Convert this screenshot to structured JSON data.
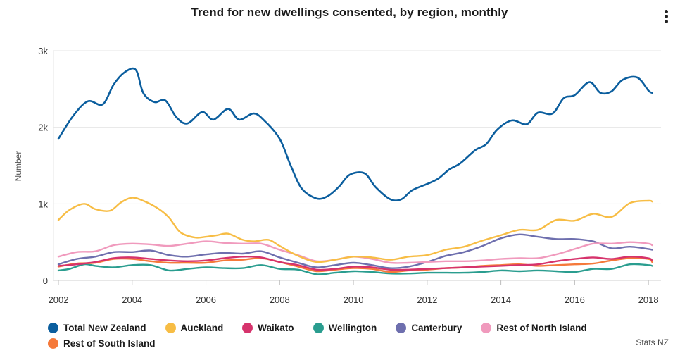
{
  "chart_data": {
    "type": "line",
    "title": "Trend for new dwellings consented, by region, monthly",
    "xlabel": "",
    "ylabel": "Number",
    "xlim": [
      2002,
      2018.15
    ],
    "ylim": [
      0,
      3000
    ],
    "x_ticks": [
      "2002",
      "2004",
      "2006",
      "2008",
      "2010",
      "2012",
      "2014",
      "2016",
      "2018"
    ],
    "y_ticks": [
      {
        "value": 0,
        "label": "0"
      },
      {
        "value": 1000,
        "label": "1k"
      },
      {
        "value": 2000,
        "label": "2k"
      },
      {
        "value": 3000,
        "label": "3k"
      }
    ],
    "grid": true,
    "legend_position": "bottom",
    "series": [
      {
        "name": "Total New Zealand",
        "color": "#0b5e9e",
        "points": [
          [
            2002.0,
            1850
          ],
          [
            2002.4,
            2150
          ],
          [
            2002.8,
            2340
          ],
          [
            2003.2,
            2300
          ],
          [
            2003.5,
            2560
          ],
          [
            2003.8,
            2720
          ],
          [
            2004.1,
            2750
          ],
          [
            2004.3,
            2450
          ],
          [
            2004.6,
            2330
          ],
          [
            2004.9,
            2350
          ],
          [
            2005.2,
            2130
          ],
          [
            2005.5,
            2050
          ],
          [
            2005.9,
            2200
          ],
          [
            2006.2,
            2100
          ],
          [
            2006.6,
            2240
          ],
          [
            2006.9,
            2100
          ],
          [
            2007.3,
            2180
          ],
          [
            2007.6,
            2080
          ],
          [
            2008.0,
            1850
          ],
          [
            2008.3,
            1500
          ],
          [
            2008.6,
            1200
          ],
          [
            2009.0,
            1070
          ],
          [
            2009.3,
            1100
          ],
          [
            2009.6,
            1220
          ],
          [
            2009.9,
            1380
          ],
          [
            2010.3,
            1400
          ],
          [
            2010.6,
            1220
          ],
          [
            2011.0,
            1060
          ],
          [
            2011.3,
            1060
          ],
          [
            2011.6,
            1180
          ],
          [
            2012.0,
            1260
          ],
          [
            2012.3,
            1330
          ],
          [
            2012.6,
            1450
          ],
          [
            2012.9,
            1530
          ],
          [
            2013.3,
            1700
          ],
          [
            2013.6,
            1780
          ],
          [
            2013.9,
            1970
          ],
          [
            2014.3,
            2090
          ],
          [
            2014.7,
            2040
          ],
          [
            2015.0,
            2190
          ],
          [
            2015.4,
            2180
          ],
          [
            2015.7,
            2380
          ],
          [
            2016.0,
            2420
          ],
          [
            2016.4,
            2590
          ],
          [
            2016.7,
            2450
          ],
          [
            2017.0,
            2470
          ],
          [
            2017.3,
            2620
          ],
          [
            2017.7,
            2650
          ],
          [
            2018.0,
            2480
          ],
          [
            2018.1,
            2450
          ]
        ]
      },
      {
        "name": "Auckland",
        "color": "#f7bd45",
        "points": [
          [
            2002.0,
            790
          ],
          [
            2002.3,
            920
          ],
          [
            2002.7,
            1000
          ],
          [
            2003.0,
            930
          ],
          [
            2003.4,
            910
          ],
          [
            2003.7,
            1020
          ],
          [
            2004.0,
            1080
          ],
          [
            2004.3,
            1040
          ],
          [
            2004.7,
            940
          ],
          [
            2005.0,
            820
          ],
          [
            2005.3,
            630
          ],
          [
            2005.7,
            560
          ],
          [
            2006.0,
            570
          ],
          [
            2006.3,
            590
          ],
          [
            2006.6,
            610
          ],
          [
            2007.0,
            530
          ],
          [
            2007.3,
            510
          ],
          [
            2007.7,
            530
          ],
          [
            2008.0,
            450
          ],
          [
            2008.5,
            320
          ],
          [
            2009.0,
            240
          ],
          [
            2009.5,
            270
          ],
          [
            2010.0,
            310
          ],
          [
            2010.5,
            300
          ],
          [
            2011.0,
            270
          ],
          [
            2011.5,
            310
          ],
          [
            2012.0,
            330
          ],
          [
            2012.5,
            400
          ],
          [
            2013.0,
            440
          ],
          [
            2013.5,
            520
          ],
          [
            2014.0,
            590
          ],
          [
            2014.5,
            660
          ],
          [
            2015.0,
            660
          ],
          [
            2015.5,
            790
          ],
          [
            2016.0,
            780
          ],
          [
            2016.5,
            870
          ],
          [
            2017.0,
            830
          ],
          [
            2017.5,
            1010
          ],
          [
            2018.0,
            1040
          ],
          [
            2018.1,
            1030
          ]
        ]
      },
      {
        "name": "Waikato",
        "color": "#d6336c",
        "points": [
          [
            2002.0,
            190
          ],
          [
            2002.5,
            210
          ],
          [
            2003.0,
            240
          ],
          [
            2003.5,
            290
          ],
          [
            2004.0,
            300
          ],
          [
            2004.5,
            280
          ],
          [
            2005.0,
            260
          ],
          [
            2005.5,
            250
          ],
          [
            2006.0,
            260
          ],
          [
            2006.5,
            290
          ],
          [
            2007.0,
            310
          ],
          [
            2007.5,
            300
          ],
          [
            2008.0,
            240
          ],
          [
            2008.5,
            200
          ],
          [
            2009.0,
            140
          ],
          [
            2009.5,
            150
          ],
          [
            2010.0,
            180
          ],
          [
            2010.5,
            170
          ],
          [
            2011.0,
            140
          ],
          [
            2011.5,
            140
          ],
          [
            2012.0,
            150
          ],
          [
            2012.5,
            160
          ],
          [
            2013.0,
            170
          ],
          [
            2013.5,
            180
          ],
          [
            2014.0,
            190
          ],
          [
            2014.5,
            200
          ],
          [
            2015.0,
            210
          ],
          [
            2015.5,
            250
          ],
          [
            2016.0,
            280
          ],
          [
            2016.5,
            300
          ],
          [
            2017.0,
            280
          ],
          [
            2017.5,
            310
          ],
          [
            2018.0,
            290
          ],
          [
            2018.1,
            260
          ]
        ]
      },
      {
        "name": "Wellington",
        "color": "#2a9d8f",
        "points": [
          [
            2002.0,
            130
          ],
          [
            2002.3,
            150
          ],
          [
            2002.7,
            210
          ],
          [
            2003.0,
            190
          ],
          [
            2003.5,
            170
          ],
          [
            2004.0,
            200
          ],
          [
            2004.5,
            200
          ],
          [
            2005.0,
            130
          ],
          [
            2005.5,
            150
          ],
          [
            2006.0,
            170
          ],
          [
            2006.5,
            160
          ],
          [
            2007.0,
            160
          ],
          [
            2007.5,
            200
          ],
          [
            2008.0,
            150
          ],
          [
            2008.5,
            140
          ],
          [
            2009.0,
            80
          ],
          [
            2009.5,
            100
          ],
          [
            2010.0,
            120
          ],
          [
            2010.5,
            110
          ],
          [
            2011.0,
            90
          ],
          [
            2011.5,
            90
          ],
          [
            2012.0,
            100
          ],
          [
            2012.5,
            100
          ],
          [
            2013.0,
            100
          ],
          [
            2013.5,
            110
          ],
          [
            2014.0,
            130
          ],
          [
            2014.5,
            120
          ],
          [
            2015.0,
            130
          ],
          [
            2015.5,
            120
          ],
          [
            2016.0,
            110
          ],
          [
            2016.5,
            150
          ],
          [
            2017.0,
            150
          ],
          [
            2017.5,
            210
          ],
          [
            2018.0,
            200
          ],
          [
            2018.1,
            190
          ]
        ]
      },
      {
        "name": "Canterbury",
        "color": "#6e6fae",
        "points": [
          [
            2002.0,
            210
          ],
          [
            2002.5,
            280
          ],
          [
            2003.0,
            310
          ],
          [
            2003.5,
            370
          ],
          [
            2004.0,
            370
          ],
          [
            2004.5,
            390
          ],
          [
            2005.0,
            330
          ],
          [
            2005.5,
            310
          ],
          [
            2006.0,
            340
          ],
          [
            2006.5,
            360
          ],
          [
            2007.0,
            350
          ],
          [
            2007.5,
            380
          ],
          [
            2008.0,
            300
          ],
          [
            2008.5,
            230
          ],
          [
            2009.0,
            170
          ],
          [
            2009.5,
            200
          ],
          [
            2010.0,
            230
          ],
          [
            2010.5,
            200
          ],
          [
            2011.0,
            160
          ],
          [
            2011.5,
            180
          ],
          [
            2012.0,
            240
          ],
          [
            2012.5,
            320
          ],
          [
            2013.0,
            370
          ],
          [
            2013.5,
            450
          ],
          [
            2014.0,
            550
          ],
          [
            2014.5,
            600
          ],
          [
            2015.0,
            570
          ],
          [
            2015.5,
            540
          ],
          [
            2016.0,
            540
          ],
          [
            2016.5,
            510
          ],
          [
            2017.0,
            420
          ],
          [
            2017.5,
            440
          ],
          [
            2018.0,
            410
          ],
          [
            2018.1,
            400
          ]
        ]
      },
      {
        "name": "Rest of North Island",
        "color": "#f09abd",
        "points": [
          [
            2002.0,
            310
          ],
          [
            2002.5,
            370
          ],
          [
            2003.0,
            380
          ],
          [
            2003.5,
            460
          ],
          [
            2004.0,
            480
          ],
          [
            2004.5,
            470
          ],
          [
            2005.0,
            450
          ],
          [
            2005.5,
            480
          ],
          [
            2006.0,
            510
          ],
          [
            2006.5,
            490
          ],
          [
            2007.0,
            480
          ],
          [
            2007.5,
            480
          ],
          [
            2008.0,
            400
          ],
          [
            2008.5,
            330
          ],
          [
            2009.0,
            250
          ],
          [
            2009.5,
            270
          ],
          [
            2010.0,
            310
          ],
          [
            2010.5,
            280
          ],
          [
            2011.0,
            230
          ],
          [
            2011.5,
            230
          ],
          [
            2012.0,
            240
          ],
          [
            2012.5,
            250
          ],
          [
            2013.0,
            250
          ],
          [
            2013.5,
            260
          ],
          [
            2014.0,
            280
          ],
          [
            2014.5,
            290
          ],
          [
            2015.0,
            290
          ],
          [
            2015.5,
            340
          ],
          [
            2016.0,
            410
          ],
          [
            2016.5,
            480
          ],
          [
            2017.0,
            480
          ],
          [
            2017.5,
            500
          ],
          [
            2018.0,
            480
          ],
          [
            2018.1,
            460
          ]
        ]
      },
      {
        "name": "Rest of South Island",
        "color": "#f5793a",
        "points": [
          [
            2002.0,
            180
          ],
          [
            2002.5,
            220
          ],
          [
            2003.0,
            230
          ],
          [
            2003.5,
            280
          ],
          [
            2004.0,
            280
          ],
          [
            2004.5,
            250
          ],
          [
            2005.0,
            230
          ],
          [
            2005.5,
            230
          ],
          [
            2006.0,
            230
          ],
          [
            2006.5,
            260
          ],
          [
            2007.0,
            270
          ],
          [
            2007.5,
            290
          ],
          [
            2008.0,
            240
          ],
          [
            2008.5,
            180
          ],
          [
            2009.0,
            120
          ],
          [
            2009.5,
            140
          ],
          [
            2010.0,
            160
          ],
          [
            2010.5,
            150
          ],
          [
            2011.0,
            110
          ],
          [
            2011.5,
            130
          ],
          [
            2012.0,
            140
          ],
          [
            2012.5,
            160
          ],
          [
            2013.0,
            170
          ],
          [
            2013.5,
            190
          ],
          [
            2014.0,
            200
          ],
          [
            2014.5,
            210
          ],
          [
            2015.0,
            190
          ],
          [
            2015.5,
            200
          ],
          [
            2016.0,
            210
          ],
          [
            2016.5,
            220
          ],
          [
            2017.0,
            260
          ],
          [
            2017.5,
            290
          ],
          [
            2018.0,
            280
          ],
          [
            2018.1,
            240
          ]
        ]
      }
    ]
  },
  "header": {
    "title": "Trend for new dwellings consented, by region, monthly"
  },
  "credit": "Stats NZ",
  "menu_icon": "more-vertical-icon"
}
